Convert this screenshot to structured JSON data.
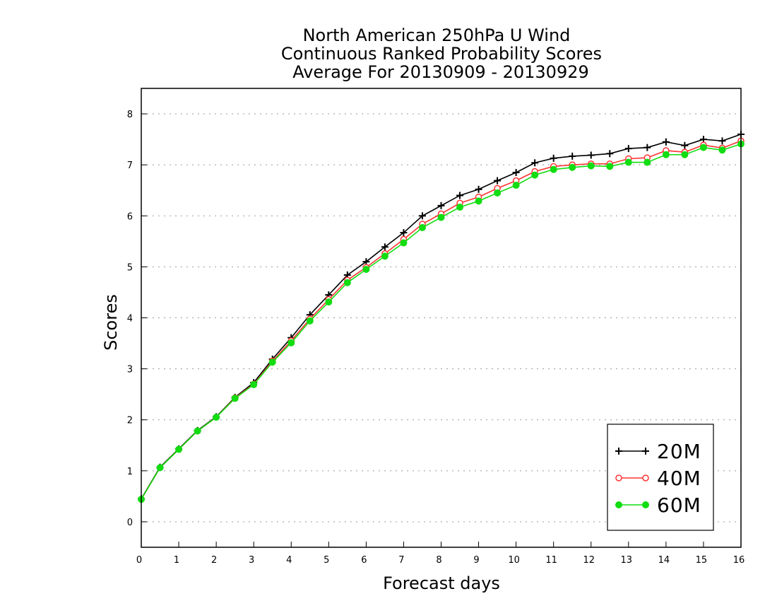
{
  "chart_data": {
    "type": "line",
    "title": [
      "North American 250hPa U Wind",
      "Continuous Ranked Probability Scores",
      "Average For 20130909 - 20130929"
    ],
    "xlabel": "Forecast days",
    "ylabel": "Scores",
    "xlim": [
      0,
      16
    ],
    "ylim": [
      -0.5,
      8.5
    ],
    "xticks": [
      0,
      1,
      2,
      3,
      4,
      5,
      6,
      7,
      8,
      9,
      10,
      11,
      12,
      13,
      14,
      15,
      16
    ],
    "yticks": [
      0,
      1,
      2,
      3,
      4,
      5,
      6,
      7,
      8
    ],
    "grid": "horizontal dotted",
    "legend_position": "bottom-right",
    "x": [
      0,
      0.5,
      1,
      1.5,
      2,
      2.5,
      3,
      3.5,
      4,
      4.5,
      5,
      5.5,
      6,
      6.5,
      7,
      7.5,
      8,
      8.5,
      9,
      9.5,
      10,
      10.5,
      11,
      11.5,
      12,
      12.5,
      13,
      13.5,
      14,
      14.5,
      15,
      15.5,
      16
    ],
    "series": [
      {
        "name": "20M",
        "color": "#000000",
        "marker": "plus",
        "values": [
          0.45,
          1.07,
          1.43,
          1.79,
          2.06,
          2.44,
          2.73,
          3.19,
          3.61,
          4.06,
          4.45,
          4.84,
          5.1,
          5.39,
          5.67,
          6.0,
          6.2,
          6.4,
          6.52,
          6.69,
          6.85,
          7.04,
          7.13,
          7.17,
          7.19,
          7.22,
          7.32,
          7.34,
          7.45,
          7.38,
          7.5,
          7.47,
          7.6
        ]
      },
      {
        "name": "40M",
        "color": "#ff3333",
        "marker": "open-circle",
        "values": [
          0.44,
          1.06,
          1.42,
          1.78,
          2.05,
          2.43,
          2.7,
          3.15,
          3.55,
          3.98,
          4.36,
          4.74,
          4.99,
          5.26,
          5.54,
          5.84,
          6.04,
          6.25,
          6.37,
          6.54,
          6.69,
          6.87,
          6.97,
          7.0,
          7.02,
          7.02,
          7.12,
          7.14,
          7.28,
          7.25,
          7.39,
          7.33,
          7.47
        ]
      },
      {
        "name": "60M",
        "color": "#11dd11",
        "marker": "filled-circle",
        "values": [
          0.44,
          1.06,
          1.42,
          1.78,
          2.05,
          2.42,
          2.69,
          3.13,
          3.51,
          3.94,
          4.31,
          4.69,
          4.95,
          5.21,
          5.47,
          5.77,
          5.97,
          6.17,
          6.29,
          6.45,
          6.6,
          6.8,
          6.91,
          6.95,
          6.98,
          6.97,
          7.05,
          7.05,
          7.2,
          7.2,
          7.34,
          7.29,
          7.41
        ]
      }
    ]
  }
}
